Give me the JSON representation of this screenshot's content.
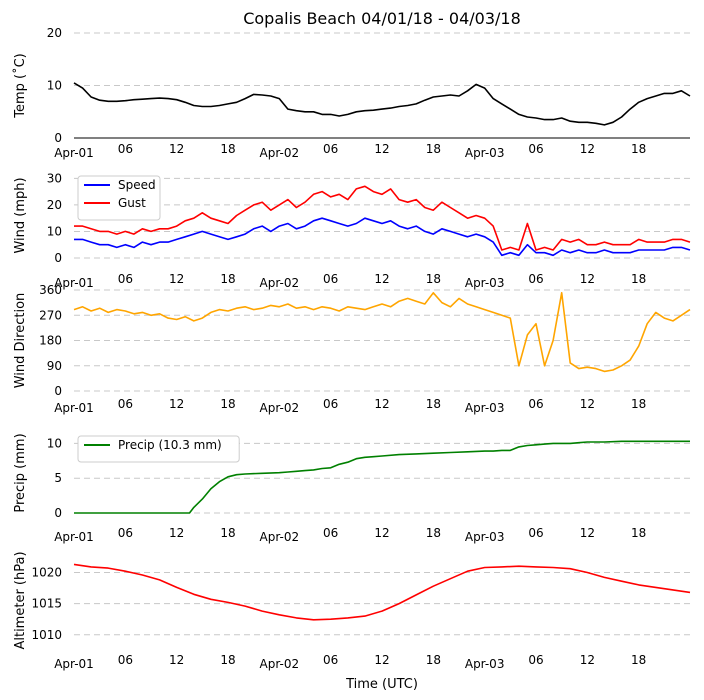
{
  "chart_data": {
    "title": "Copalis Beach 04/01/18 - 04/03/18",
    "xlabel": "Time (UTC)",
    "x_range_hours": [
      0,
      72
    ],
    "x_ticks": [
      {
        "h": 0,
        "label": "Apr-01",
        "major": true
      },
      {
        "h": 6,
        "label": "06",
        "major": false
      },
      {
        "h": 12,
        "label": "12",
        "major": false
      },
      {
        "h": 18,
        "label": "18",
        "major": false
      },
      {
        "h": 24,
        "label": "Apr-02",
        "major": true
      },
      {
        "h": 30,
        "label": "06",
        "major": false
      },
      {
        "h": 36,
        "label": "12",
        "major": false
      },
      {
        "h": 42,
        "label": "18",
        "major": false
      },
      {
        "h": 48,
        "label": "Apr-03",
        "major": true
      },
      {
        "h": 54,
        "label": "06",
        "major": false
      },
      {
        "h": 60,
        "label": "12",
        "major": false
      },
      {
        "h": 66,
        "label": "18",
        "major": false
      }
    ],
    "panels": [
      {
        "type": "line",
        "ylabel": "Temp (˚C)",
        "ylim": [
          0,
          20
        ],
        "yticks": [
          "0",
          "10",
          "20"
        ],
        "yvals": [
          0,
          10,
          20
        ],
        "legend": null,
        "series": [
          {
            "name": "Temp",
            "color": "#000000",
            "x": [
              0,
              1,
              2,
              3,
              4,
              5,
              6,
              7,
              8,
              9,
              10,
              11,
              12,
              13,
              14,
              15,
              16,
              17,
              18,
              19,
              20,
              21,
              22,
              23,
              24,
              25,
              26,
              27,
              28,
              29,
              30,
              31,
              32,
              33,
              34,
              35,
              36,
              37,
              38,
              39,
              40,
              41,
              42,
              43,
              44,
              45,
              46,
              47,
              48,
              49,
              50,
              51,
              52,
              53,
              54,
              55,
              56,
              57,
              58,
              59,
              60,
              61,
              62,
              63,
              64,
              65,
              66,
              67,
              68,
              69,
              70,
              71,
              72
            ],
            "y": [
              10.5,
              9.5,
              7.8,
              7.2,
              7.0,
              7.0,
              7.1,
              7.3,
              7.4,
              7.5,
              7.6,
              7.5,
              7.3,
              6.8,
              6.2,
              6.0,
              6.0,
              6.2,
              6.5,
              6.8,
              7.5,
              8.3,
              8.2,
              8.0,
              7.5,
              5.5,
              5.2,
              5.0,
              5.0,
              4.5,
              4.5,
              4.2,
              4.5,
              5.0,
              5.2,
              5.3,
              5.5,
              5.7,
              6.0,
              6.2,
              6.5,
              7.2,
              7.8,
              8.0,
              8.2,
              8.0,
              9.0,
              10.2,
              9.5,
              7.5,
              6.5,
              5.5,
              4.5,
              4.0,
              3.8,
              3.5,
              3.5,
              3.8,
              3.2,
              3.0,
              3.0,
              2.8,
              2.5,
              3.0,
              4.0,
              5.5,
              6.8,
              7.5,
              8.0,
              8.5,
              8.5,
              9.0,
              8.0
            ]
          }
        ]
      },
      {
        "type": "line",
        "ylabel": "Wind (mph)",
        "ylim": [
          0,
          32
        ],
        "yticks": [
          "0",
          "10",
          "20",
          "30"
        ],
        "yvals": [
          0,
          10,
          20,
          30
        ],
        "legend": {
          "placement": "top-left",
          "labels": [
            "Speed",
            "Gust"
          ]
        },
        "series": [
          {
            "name": "Speed",
            "color": "#0000ff",
            "x": [
              0,
              1,
              2,
              3,
              4,
              5,
              6,
              7,
              8,
              9,
              10,
              11,
              12,
              13,
              14,
              15,
              16,
              17,
              18,
              19,
              20,
              21,
              22,
              23,
              24,
              25,
              26,
              27,
              28,
              29,
              30,
              31,
              32,
              33,
              34,
              35,
              36,
              37,
              38,
              39,
              40,
              41,
              42,
              43,
              44,
              45,
              46,
              47,
              48,
              49,
              50,
              51,
              52,
              53,
              54,
              55,
              56,
              57,
              58,
              59,
              60,
              61,
              62,
              63,
              64,
              65,
              66,
              67,
              68,
              69,
              70,
              71,
              72
            ],
            "y": [
              7,
              7,
              6,
              5,
              5,
              4,
              5,
              4,
              6,
              5,
              6,
              6,
              7,
              8,
              9,
              10,
              9,
              8,
              7,
              8,
              9,
              11,
              12,
              10,
              12,
              13,
              11,
              12,
              14,
              15,
              14,
              13,
              12,
              13,
              15,
              14,
              13,
              14,
              12,
              11,
              12,
              10,
              9,
              11,
              10,
              9,
              8,
              9,
              8,
              6,
              1,
              2,
              1,
              5,
              2,
              2,
              1,
              3,
              2,
              3,
              2,
              2,
              3,
              2,
              2,
              2,
              3,
              3,
              3,
              3,
              4,
              4,
              3
            ]
          },
          {
            "name": "Gust",
            "color": "#ff0000",
            "x": [
              0,
              1,
              2,
              3,
              4,
              5,
              6,
              7,
              8,
              9,
              10,
              11,
              12,
              13,
              14,
              15,
              16,
              17,
              18,
              19,
              20,
              21,
              22,
              23,
              24,
              25,
              26,
              27,
              28,
              29,
              30,
              31,
              32,
              33,
              34,
              35,
              36,
              37,
              38,
              39,
              40,
              41,
              42,
              43,
              44,
              45,
              46,
              47,
              48,
              49,
              50,
              51,
              52,
              53,
              54,
              55,
              56,
              57,
              58,
              59,
              60,
              61,
              62,
              63,
              64,
              65,
              66,
              67,
              68,
              69,
              70,
              71,
              72
            ],
            "y": [
              12,
              12,
              11,
              10,
              10,
              9,
              10,
              9,
              11,
              10,
              11,
              11,
              12,
              14,
              15,
              17,
              15,
              14,
              13,
              16,
              18,
              20,
              21,
              18,
              20,
              22,
              19,
              21,
              24,
              25,
              23,
              24,
              22,
              26,
              27,
              25,
              24,
              26,
              22,
              21,
              22,
              19,
              18,
              21,
              19,
              17,
              15,
              16,
              15,
              12,
              3,
              4,
              3,
              13,
              3,
              4,
              3,
              7,
              6,
              7,
              5,
              5,
              6,
              5,
              5,
              5,
              7,
              6,
              6,
              6,
              7,
              7,
              6
            ]
          }
        ]
      },
      {
        "type": "line",
        "ylabel": "Wind Direction",
        "ylim": [
          0,
          360
        ],
        "yticks": [
          "0",
          "90",
          "180",
          "270",
          "360"
        ],
        "yvals": [
          0,
          90,
          180,
          270,
          360
        ],
        "legend": null,
        "series": [
          {
            "name": "Direction",
            "color": "#ffa500",
            "x": [
              0,
              1,
              2,
              3,
              4,
              5,
              6,
              7,
              8,
              9,
              10,
              11,
              12,
              13,
              14,
              15,
              16,
              17,
              18,
              19,
              20,
              21,
              22,
              23,
              24,
              25,
              26,
              27,
              28,
              29,
              30,
              31,
              32,
              33,
              34,
              35,
              36,
              37,
              38,
              39,
              40,
              41,
              42,
              43,
              44,
              45,
              46,
              47,
              48,
              49,
              50,
              51,
              52,
              53,
              54,
              55,
              56,
              57,
              58,
              59,
              60,
              61,
              62,
              63,
              64,
              65,
              66,
              67,
              68,
              69,
              70,
              71,
              72
            ],
            "y": [
              290,
              300,
              285,
              295,
              280,
              290,
              285,
              275,
              280,
              270,
              275,
              260,
              255,
              265,
              250,
              260,
              280,
              290,
              285,
              295,
              300,
              290,
              295,
              305,
              300,
              310,
              295,
              300,
              290,
              300,
              295,
              285,
              300,
              295,
              290,
              300,
              310,
              300,
              320,
              330,
              320,
              310,
              350,
              315,
              300,
              330,
              310,
              300,
              290,
              280,
              270,
              260,
              90,
              200,
              240,
              90,
              180,
              350,
              100,
              80,
              85,
              80,
              70,
              75,
              90,
              110,
              160,
              240,
              280,
              260,
              250,
              270,
              290
            ]
          }
        ]
      },
      {
        "type": "line",
        "ylabel": "Precip (mm)",
        "ylim": [
          0,
          11.5
        ],
        "yticks": [
          "0",
          "5",
          "10"
        ],
        "yvals": [
          0,
          5,
          10
        ],
        "legend": {
          "placement": "top-left",
          "labels": [
            "Precip (10.3 mm)"
          ]
        },
        "series": [
          {
            "name": "Precip (10.3 mm)",
            "color": "#008000",
            "x": [
              0,
              13.5,
              14,
              15,
              16,
              17,
              18,
              19,
              20,
              22,
              24,
              25,
              26,
              27,
              28,
              29,
              30,
              31,
              32,
              33,
              34,
              35,
              36,
              38,
              40,
              42,
              44,
              46,
              48,
              49,
              50,
              51,
              52,
              53,
              54,
              55,
              56,
              57,
              58,
              59,
              60,
              62,
              64,
              66,
              68,
              70,
              72
            ],
            "y": [
              0,
              0,
              0.8,
              2.0,
              3.5,
              4.5,
              5.2,
              5.5,
              5.6,
              5.7,
              5.8,
              5.9,
              6.0,
              6.1,
              6.2,
              6.4,
              6.5,
              7.0,
              7.3,
              7.8,
              8.0,
              8.1,
              8.2,
              8.4,
              8.5,
              8.6,
              8.7,
              8.8,
              8.9,
              8.9,
              9.0,
              9.0,
              9.5,
              9.7,
              9.8,
              9.9,
              10.0,
              10.0,
              10.0,
              10.1,
              10.2,
              10.2,
              10.3,
              10.3,
              10.3,
              10.3,
              10.3
            ]
          }
        ]
      },
      {
        "type": "line",
        "ylabel": "Altimeter (hPa)",
        "ylim": [
          1009,
          1022
        ],
        "yticks": [
          "1010",
          "1015",
          "1020"
        ],
        "yvals": [
          1010,
          1015,
          1020
        ],
        "legend": null,
        "series": [
          {
            "name": "Altimeter",
            "color": "#ff0000",
            "x": [
              0,
              2,
              4,
              6,
              8,
              10,
              12,
              14,
              16,
              18,
              20,
              22,
              24,
              26,
              28,
              30,
              32,
              34,
              36,
              38,
              40,
              42,
              44,
              46,
              48,
              50,
              52,
              54,
              56,
              58,
              60,
              62,
              64,
              66,
              68,
              70,
              72
            ],
            "y": [
              1021.3,
              1020.9,
              1020.7,
              1020.2,
              1019.6,
              1018.8,
              1017.6,
              1016.5,
              1015.7,
              1015.2,
              1014.6,
              1013.8,
              1013.2,
              1012.7,
              1012.4,
              1012.5,
              1012.7,
              1013.0,
              1013.8,
              1015.0,
              1016.4,
              1017.8,
              1019.0,
              1020.2,
              1020.8,
              1020.9,
              1021.0,
              1020.9,
              1020.8,
              1020.6,
              1020.0,
              1019.2,
              1018.6,
              1018.0,
              1017.6,
              1017.2,
              1016.8
            ]
          }
        ]
      }
    ]
  }
}
